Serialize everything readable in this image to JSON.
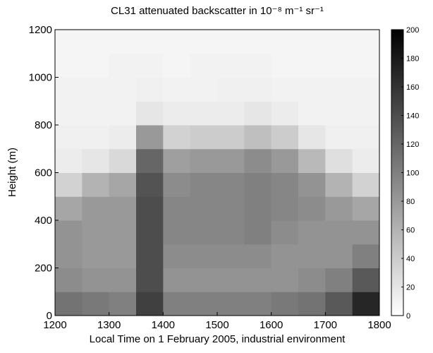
{
  "chart_data": {
    "type": "heatmap",
    "title": "CL31 attenuated backscatter in 10⁻⁸ m⁻¹ sr⁻¹",
    "xlabel": "Local Time on 1 February 2005, industrial environment",
    "ylabel": "Height (m)",
    "x_bins": [
      1200,
      1250,
      1300,
      1350,
      1400,
      1450,
      1500,
      1550,
      1600,
      1650,
      1700,
      1750,
      1800
    ],
    "y_bins": [
      0,
      100,
      200,
      300,
      400,
      500,
      600,
      700,
      800,
      900,
      1000,
      1100,
      1200
    ],
    "values": [
      [
        110,
        105,
        100,
        150,
        100,
        100,
        100,
        100,
        105,
        110,
        130,
        170
      ],
      [
        90,
        85,
        85,
        140,
        85,
        85,
        85,
        85,
        85,
        90,
        100,
        130
      ],
      [
        85,
        80,
        80,
        140,
        90,
        90,
        90,
        90,
        85,
        85,
        85,
        100
      ],
      [
        85,
        80,
        80,
        140,
        95,
        95,
        95,
        100,
        90,
        85,
        85,
        85
      ],
      [
        70,
        80,
        80,
        140,
        95,
        95,
        95,
        100,
        95,
        90,
        80,
        70
      ],
      [
        35,
        60,
        70,
        135,
        90,
        95,
        95,
        100,
        95,
        85,
        60,
        35
      ],
      [
        15,
        20,
        30,
        120,
        75,
        80,
        80,
        90,
        80,
        55,
        25,
        15
      ],
      [
        12,
        12,
        15,
        80,
        35,
        40,
        40,
        50,
        40,
        20,
        12,
        12
      ],
      [
        10,
        10,
        10,
        20,
        15,
        15,
        15,
        20,
        15,
        10,
        10,
        10
      ],
      [
        10,
        10,
        10,
        12,
        10,
        10,
        12,
        12,
        10,
        10,
        10,
        10
      ],
      [
        8,
        8,
        10,
        10,
        8,
        10,
        10,
        10,
        8,
        8,
        8,
        8
      ],
      [
        8,
        8,
        8,
        8,
        8,
        8,
        8,
        8,
        8,
        8,
        8,
        8
      ]
    ],
    "xlim": [
      1200,
      1800
    ],
    "xticks": [
      1200,
      1300,
      1400,
      1500,
      1600,
      1700,
      1800
    ],
    "ylim": [
      0,
      1200
    ],
    "yticks": [
      0,
      200,
      400,
      600,
      800,
      1000,
      1200
    ],
    "clim": [
      0,
      200
    ],
    "cticks": [
      0,
      20,
      40,
      60,
      80,
      100,
      120,
      140,
      160,
      180,
      200
    ],
    "colormap": "gray-reversed"
  }
}
